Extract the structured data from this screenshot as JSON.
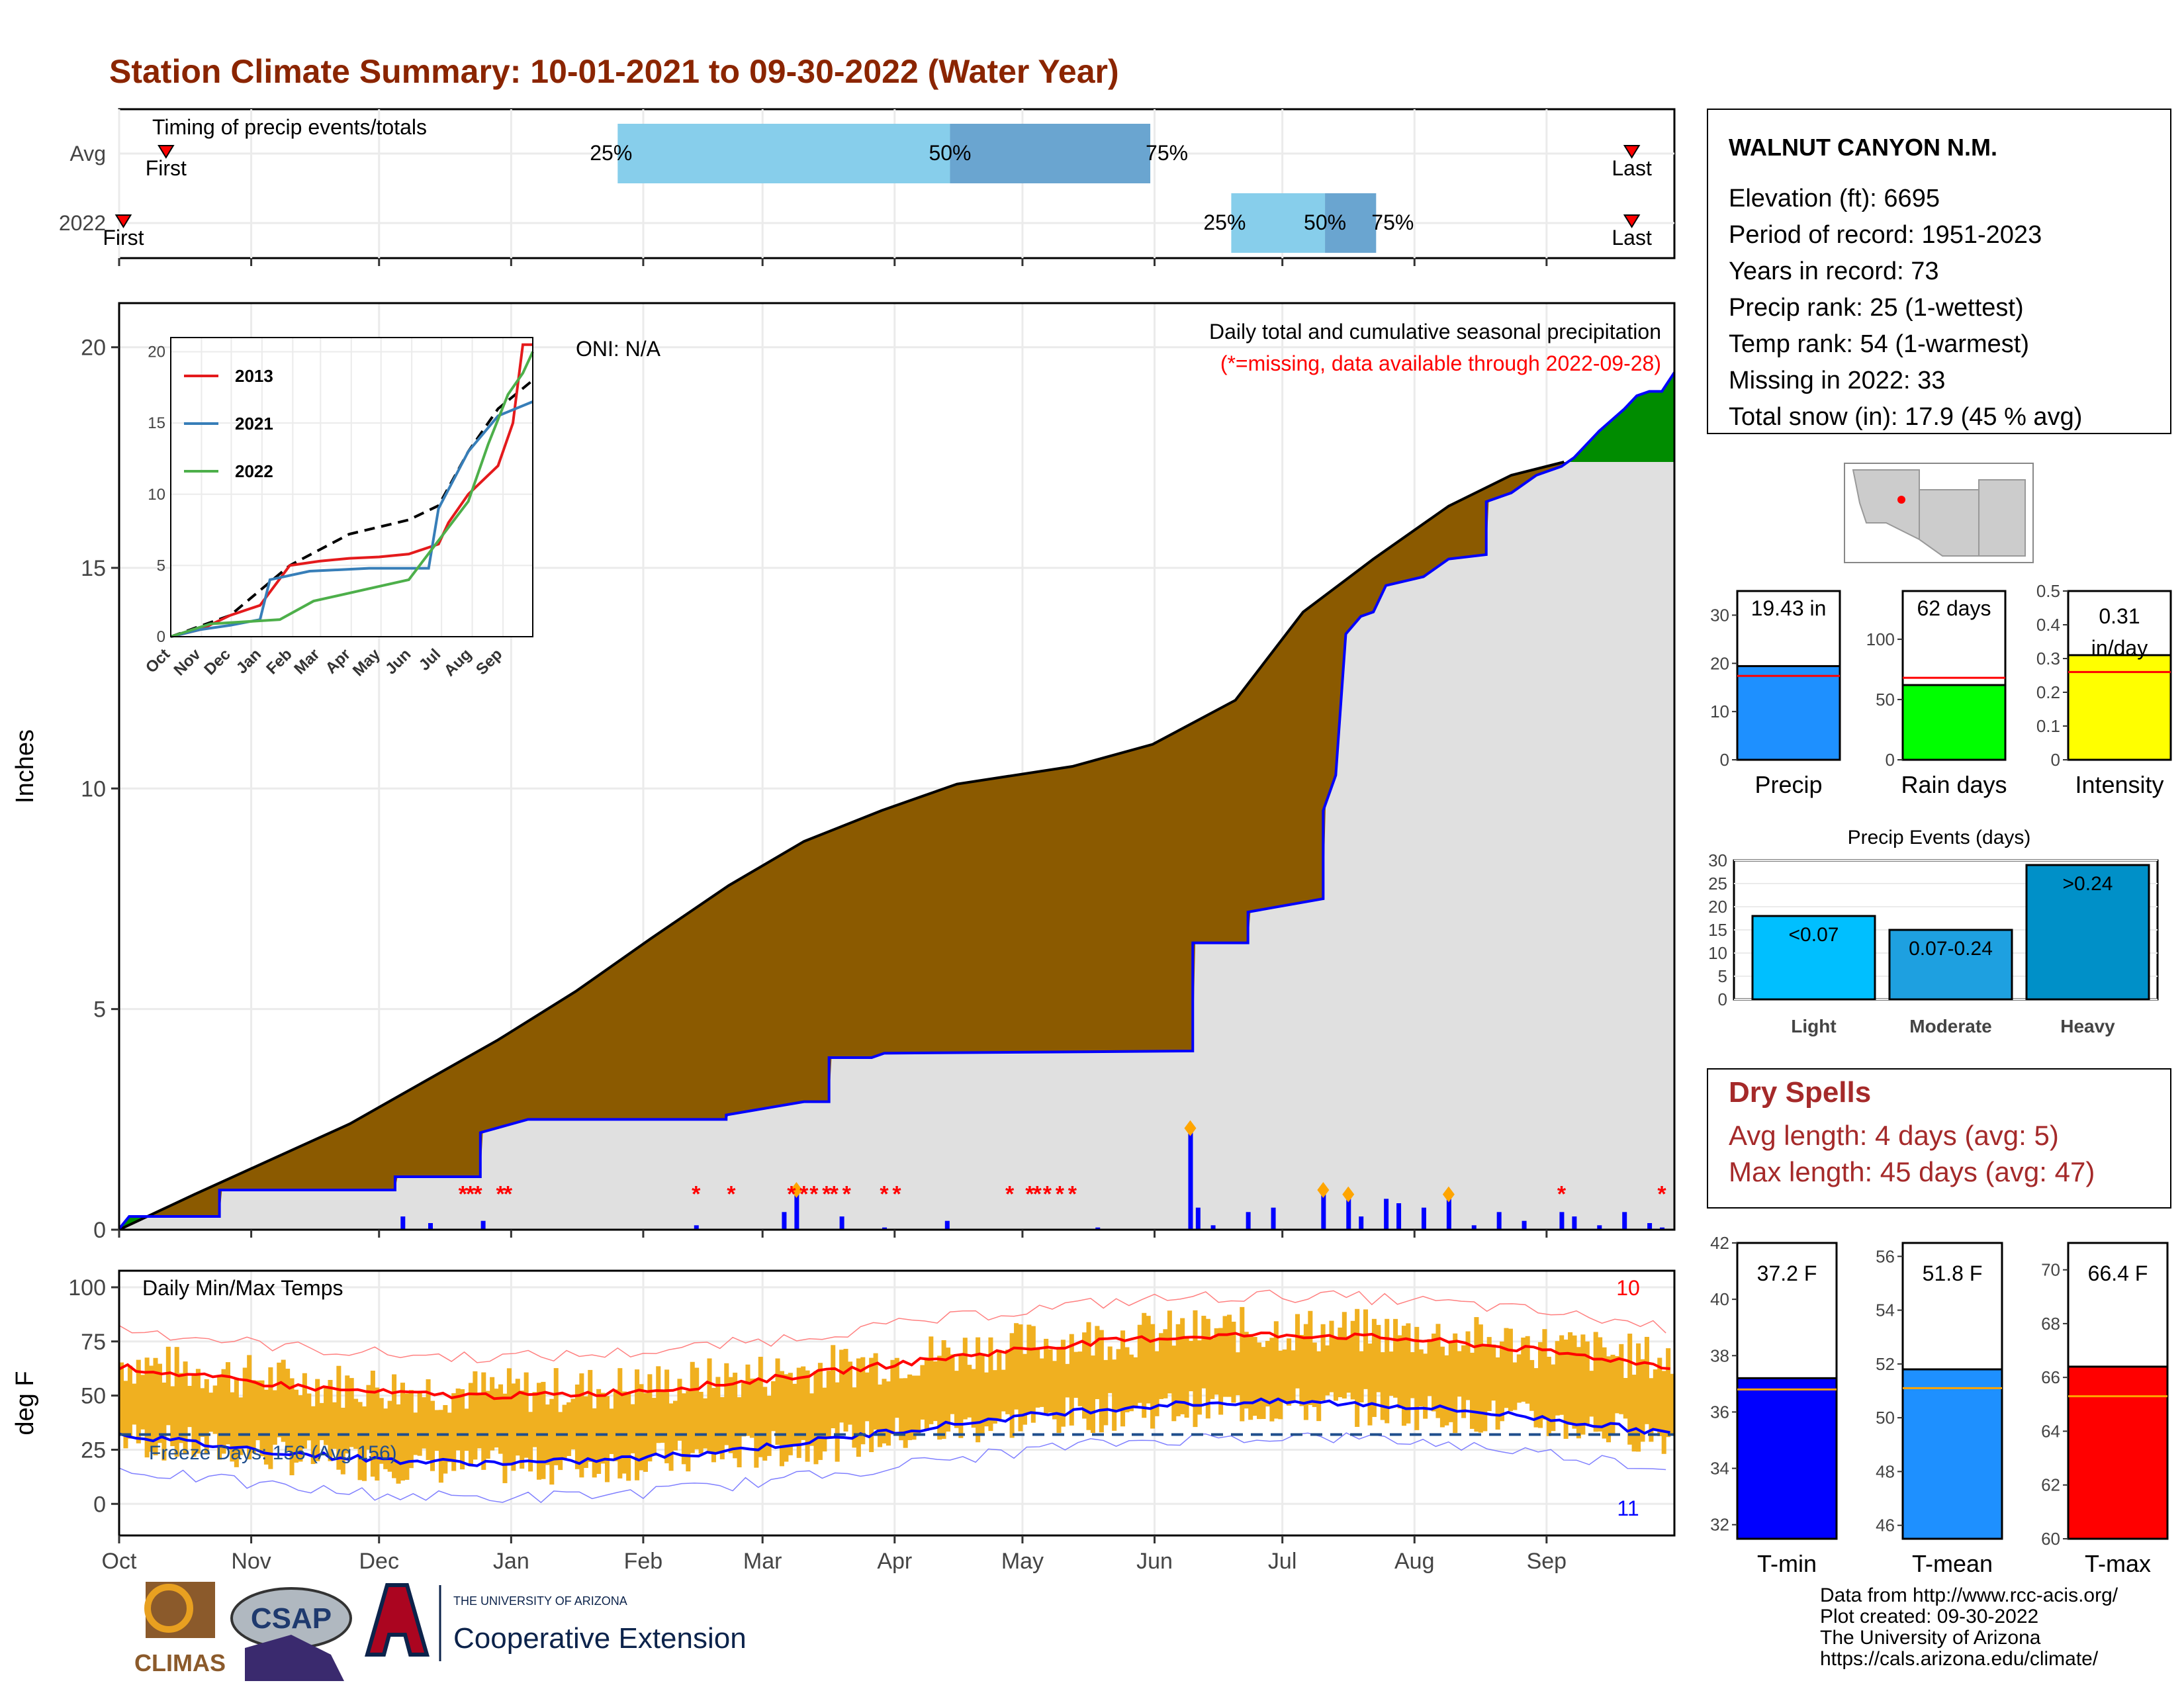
{
  "title": "Station Climate Summary: 10-01-2021 to 09-30-2022 (Water Year)",
  "colors": {
    "title": "#8b2500",
    "precip_cum_2022": "#0000ff",
    "above_avg": "#008c00",
    "below_avg": "#8b5a00",
    "avg_fill": "#e0e0e0",
    "daily_bar": "#0000ff",
    "missing": "#ff0000",
    "tband": "#f0b020",
    "tmax_avg": "#ff0000",
    "tmin_avg": "#0000ff",
    "timing_light": "#87ceeb",
    "timing_dark": "#6aa5d0"
  },
  "months": [
    "Oct",
    "Nov",
    "Dec",
    "Jan",
    "Feb",
    "Mar",
    "Apr",
    "May",
    "Jun",
    "Jul",
    "Aug",
    "Sep"
  ],
  "timing": {
    "title": "Timing of precip events/totals",
    "rows": [
      {
        "label": "Avg",
        "first_doy": 11,
        "last_doy": 355,
        "p25": 117,
        "p50": 195,
        "p75": 242
      },
      {
        "label": "2022",
        "first_doy": 1,
        "last_doy": 355,
        "p25": 261,
        "p50": 283,
        "p75": 295
      }
    ],
    "first_label": "First",
    "last_label": "Last",
    "p25_label": "25%",
    "p50_label": "50%",
    "p75_label": "75%"
  },
  "precip": {
    "oni_label": "ONI: N/A",
    "subtitle": "Daily total and cumulative seasonal precipitation",
    "missing_note": "(*=missing, data available through 2022-09-28)",
    "ylabel": "Inches",
    "yticks": [
      0,
      5,
      10,
      15,
      20
    ],
    "ylim": [
      0,
      21
    ],
    "avg_cumulative": [
      [
        0,
        0
      ],
      [
        15,
        0.4
      ],
      [
        30,
        0.8
      ],
      [
        61,
        1.6
      ],
      [
        92,
        2.4
      ],
      [
        123,
        3.4
      ],
      [
        151,
        4.3
      ],
      [
        182,
        5.4
      ],
      [
        212,
        6.6
      ],
      [
        243,
        7.8
      ],
      [
        273,
        8.8
      ],
      [
        304,
        9.5
      ],
      [
        334,
        10.1
      ],
      [
        380,
        10.5
      ],
      [
        412,
        11.0
      ],
      [
        445,
        12.0
      ],
      [
        472,
        14.0
      ],
      [
        500,
        15.2
      ],
      [
        530,
        16.4
      ],
      [
        555,
        17.1
      ],
      [
        576,
        17.4
      ]
    ],
    "y2022_cumulative": [
      [
        0,
        0.02
      ],
      [
        4,
        0.3
      ],
      [
        40,
        0.3
      ],
      [
        40,
        0.9
      ],
      [
        110,
        0.9
      ],
      [
        110,
        1.2
      ],
      [
        144,
        1.2
      ],
      [
        144,
        2.2
      ],
      [
        163,
        2.5
      ],
      [
        242,
        2.5
      ],
      [
        242,
        2.6
      ],
      [
        273,
        2.9
      ],
      [
        283,
        2.9
      ],
      [
        283,
        3.9
      ],
      [
        300,
        3.9
      ],
      [
        305,
        4.0
      ],
      [
        428,
        4.05
      ],
      [
        428,
        6.5
      ],
      [
        450,
        6.5
      ],
      [
        450,
        7.2
      ],
      [
        460,
        7.3
      ],
      [
        480,
        7.5
      ],
      [
        480,
        9.5
      ],
      [
        485,
        10.3
      ],
      [
        489,
        13.5
      ],
      [
        495,
        13.9
      ],
      [
        500,
        14.0
      ],
      [
        505,
        14.6
      ],
      [
        520,
        14.8
      ],
      [
        530,
        15.2
      ],
      [
        545,
        15.3
      ],
      [
        545,
        16.5
      ],
      [
        555,
        16.7
      ],
      [
        565,
        17.1
      ],
      [
        575,
        17.3
      ],
      [
        580,
        17.5
      ],
      [
        590,
        18.1
      ],
      [
        600,
        18.6
      ],
      [
        605,
        18.9
      ],
      [
        610,
        19.0
      ],
      [
        615,
        19.0
      ],
      [
        620,
        19.43
      ]
    ],
    "daily_bars": [
      [
        113,
        0.3
      ],
      [
        124,
        0.15
      ],
      [
        145,
        0.2
      ],
      [
        230,
        0.1
      ],
      [
        265,
        0.4
      ],
      [
        270,
        0.9
      ],
      [
        288,
        0.3
      ],
      [
        305,
        0.05
      ],
      [
        330,
        0.2
      ],
      [
        390,
        0.05
      ],
      [
        427,
        2.3
      ],
      [
        430,
        0.5
      ],
      [
        436,
        0.1
      ],
      [
        450,
        0.4
      ],
      [
        460,
        0.5
      ],
      [
        480,
        0.9
      ],
      [
        490,
        0.8
      ],
      [
        495,
        0.3
      ],
      [
        505,
        0.7
      ],
      [
        510,
        0.6
      ],
      [
        520,
        0.5
      ],
      [
        530,
        0.8
      ],
      [
        540,
        0.1
      ],
      [
        550,
        0.4
      ],
      [
        560,
        0.2
      ],
      [
        575,
        0.4
      ],
      [
        580,
        0.3
      ],
      [
        590,
        0.1
      ],
      [
        600,
        0.4
      ],
      [
        610,
        0.15
      ],
      [
        615,
        0.05
      ]
    ],
    "missing_days": [
      137,
      140,
      143,
      152,
      155,
      230,
      244,
      268,
      273,
      277,
      282,
      285,
      290,
      305,
      310,
      355,
      363,
      366,
      370,
      375,
      380,
      575,
      615
    ]
  },
  "inset": {
    "years": [
      {
        "name": "2013",
        "color": "#e41a1c",
        "points": [
          [
            0,
            0
          ],
          [
            30,
            0.5
          ],
          [
            60,
            1.5
          ],
          [
            90,
            2.2
          ],
          [
            120,
            5.0
          ],
          [
            150,
            5.3
          ],
          [
            180,
            5.5
          ],
          [
            210,
            5.6
          ],
          [
            240,
            5.8
          ],
          [
            270,
            6.5
          ],
          [
            280,
            8.0
          ],
          [
            300,
            10.0
          ],
          [
            330,
            12.0
          ],
          [
            345,
            15.0
          ],
          [
            355,
            20.5
          ],
          [
            365,
            20.5
          ]
        ]
      },
      {
        "name": "2021",
        "color": "#377eb8",
        "points": [
          [
            0,
            0
          ],
          [
            30,
            0.5
          ],
          [
            60,
            0.8
          ],
          [
            90,
            1.2
          ],
          [
            100,
            4.0
          ],
          [
            140,
            4.6
          ],
          [
            200,
            4.8
          ],
          [
            260,
            4.8
          ],
          [
            270,
            9.0
          ],
          [
            300,
            13.0
          ],
          [
            330,
            15.5
          ],
          [
            365,
            16.5
          ]
        ]
      },
      {
        "name": "2022",
        "color": "#4daf4a",
        "points": [
          [
            0,
            0
          ],
          [
            40,
            0.9
          ],
          [
            110,
            1.2
          ],
          [
            144,
            2.5
          ],
          [
            240,
            4.0
          ],
          [
            300,
            9.5
          ],
          [
            320,
            13.5
          ],
          [
            340,
            17.0
          ],
          [
            355,
            18.5
          ],
          [
            365,
            20.0
          ]
        ]
      }
    ],
    "avg": [
      [
        0,
        0
      ],
      [
        60,
        1.5
      ],
      [
        120,
        5.0
      ],
      [
        180,
        7.2
      ],
      [
        240,
        8.2
      ],
      [
        270,
        9.2
      ],
      [
        300,
        13.0
      ],
      [
        330,
        16.0
      ],
      [
        365,
        18.0
      ]
    ],
    "yticks": [
      0,
      5,
      10,
      15,
      20
    ],
    "months": [
      "Oct",
      "Nov",
      "Dec",
      "Jan",
      "Feb",
      "Mar",
      "Apr",
      "May",
      "Jun",
      "Jul",
      "Aug",
      "Sep"
    ]
  },
  "temps": {
    "label": "Daily Min/Max Temps",
    "ylabel": "deg F",
    "yticks": [
      0,
      25,
      50,
      75,
      100
    ],
    "freeze_label": "Freeze Days: 156 (Avg 156)",
    "max_count": "10",
    "min_count": "11",
    "freeze_line": 32
  },
  "station": {
    "name": "WALNUT CANYON N.M.",
    "lines": [
      "Elevation (ft): 6695",
      "Period of record: 1951-2023",
      "Years in record: 73",
      "Precip rank: 25 (1-wettest)",
      "Temp rank: 54 (1-warmest)",
      "Missing in 2022: 33",
      "Total snow (in): 17.9 (45 % avg)"
    ]
  },
  "summary_bars": [
    {
      "label": "Precip",
      "value_text": "19.43 in",
      "value": 19.43,
      "avg": 17.4,
      "max": 35,
      "yticks": [
        0,
        10,
        20,
        30
      ],
      "color": "#1e90ff"
    },
    {
      "label": "Rain days",
      "value_text": "62 days",
      "value": 62,
      "avg": 68,
      "max": 140,
      "yticks": [
        0,
        50,
        100
      ],
      "color": "#00ff00"
    },
    {
      "label": "Intensity",
      "value_text": "0.31 in/day",
      "value": 0.31,
      "avg": 0.26,
      "max": 0.5,
      "yticks": [
        0.0,
        0.1,
        0.2,
        0.3,
        0.4,
        0.5
      ],
      "color": "#ffff00"
    }
  ],
  "events": {
    "title": "Precip Events (days)",
    "yticks": [
      0,
      5,
      10,
      15,
      20,
      25,
      30
    ],
    "bars": [
      {
        "label": "Light",
        "range": "<0.07",
        "value": 18,
        "color": "#00bfff"
      },
      {
        "label": "Moderate",
        "range": "0.07-0.24",
        "value": 15,
        "color": "#1ea0e0"
      },
      {
        "label": "Heavy",
        "range": ">0.24",
        "value": 29,
        "color": "#0090c8"
      }
    ]
  },
  "dry_spells": {
    "title": "Dry Spells",
    "avg": "Avg length: 4 days (avg: 5)",
    "max": "Max length: 45 days (avg: 47)"
  },
  "temp_bars": [
    {
      "label": "T-min",
      "value_text": "37.2 F",
      "value": 37.2,
      "avg": 36.8,
      "min": 31.5,
      "max": 42,
      "yticks": [
        32,
        34,
        36,
        38,
        40,
        42
      ],
      "color": "#0000ff"
    },
    {
      "label": "T-mean",
      "value_text": "51.8 F",
      "value": 51.8,
      "avg": 51.1,
      "min": 45.5,
      "max": 56.5,
      "yticks": [
        46,
        48,
        50,
        52,
        54,
        56
      ],
      "color": "#1e90ff"
    },
    {
      "label": "T-max",
      "value_text": "66.4 F",
      "value": 66.4,
      "avg": 65.3,
      "min": 60,
      "max": 71,
      "yticks": [
        60,
        62,
        64,
        66,
        68,
        70
      ],
      "color": "#ff0000"
    }
  ],
  "credits": [
    "Data from http://www.rcc-acis.org/",
    "Plot created: 09-30-2022",
    "The University of Arizona",
    "https://cals.arizona.edu/climate/"
  ],
  "logos": {
    "climas": "CLIMAS",
    "csap": "CSAP",
    "ua_small": "THE UNIVERSITY OF ARIZONA",
    "ua_big": "Cooperative Extension"
  }
}
